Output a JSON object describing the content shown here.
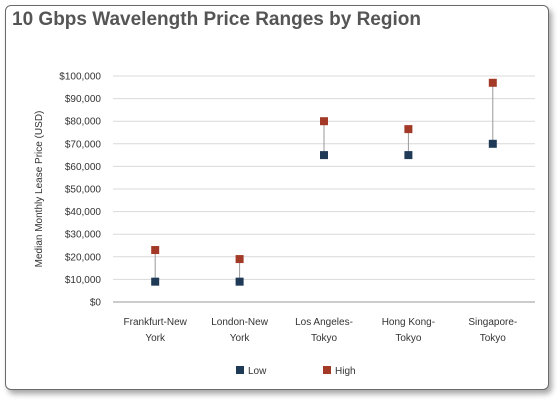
{
  "chart_data": {
    "type": "scatter",
    "title": "10 Gbps Wavelength Price Ranges by Region",
    "ylabel": "Median  Monthly Lease Price (USD)",
    "xlabel": "",
    "ylim": [
      0,
      100000
    ],
    "yticks": [
      0,
      10000,
      20000,
      30000,
      40000,
      50000,
      60000,
      70000,
      80000,
      90000,
      100000
    ],
    "ytick_labels": [
      "$0",
      "$10,000",
      "$20,000",
      "$30,000",
      "$40,000",
      "$50,000",
      "$60,000",
      "$70,000",
      "$80,000",
      "$90,000",
      "$100,000"
    ],
    "categories": [
      [
        "Frankfurt-New",
        "York"
      ],
      [
        "London-New",
        "York"
      ],
      [
        "Los Angeles-",
        "Tokyo"
      ],
      [
        "Hong Kong-",
        "Tokyo"
      ],
      [
        "Singapore-",
        "Tokyo"
      ]
    ],
    "series": [
      {
        "name": "Low",
        "color": "#1f3a57",
        "values": [
          9000,
          9000,
          65000,
          65000,
          70000
        ]
      },
      {
        "name": "High",
        "color": "#a33a28",
        "values": [
          23000,
          19000,
          80000,
          76500,
          97000
        ]
      }
    ],
    "grid": true,
    "legend_position": "bottom"
  }
}
